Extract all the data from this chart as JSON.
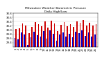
{
  "title": "Milwaukee Weather Barometric Pressure\nDaily High/Low",
  "title_fontsize": 3.2,
  "highs": [
    30.05,
    30.08,
    30.32,
    30.22,
    29.85,
    30.15,
    30.38,
    30.28,
    30.18,
    30.42,
    30.1,
    30.45,
    30.3,
    29.95,
    30.25,
    30.38,
    30.18,
    30.28,
    30.15,
    30.42,
    30.35,
    30.48,
    30.22,
    30.35,
    30.2,
    30.28
  ],
  "lows": [
    29.62,
    29.55,
    29.88,
    29.8,
    29.3,
    29.65,
    29.92,
    29.75,
    29.7,
    29.95,
    29.6,
    29.98,
    29.82,
    29.48,
    29.78,
    29.9,
    29.68,
    29.82,
    29.65,
    29.92,
    29.85,
    29.98,
    29.72,
    29.88,
    29.7,
    29.8
  ],
  "high_color": "#cc0000",
  "low_color": "#0000cc",
  "ylim_min": 29.2,
  "ylim_max": 30.8,
  "yticks": [
    29.4,
    29.6,
    29.8,
    30.0,
    30.2,
    30.4,
    30.6,
    30.8
  ],
  "ytick_labels": [
    "29.4",
    "29.6",
    "29.8",
    "30.0",
    "30.2",
    "30.4",
    "30.6",
    "30.8"
  ],
  "tick_fontsize": 2.8,
  "bar_width": 0.38,
  "bg_color": "#ffffff",
  "grid_color": "#bbbbbb",
  "x_labels": [
    "1",
    "2",
    "3",
    "4",
    "5",
    "6",
    "7",
    "8",
    "9",
    "10",
    "11",
    "12",
    "13",
    "14",
    "15",
    "16",
    "17",
    "18",
    "19",
    "20",
    "21",
    "22",
    "23",
    "24",
    "25",
    "26"
  ]
}
